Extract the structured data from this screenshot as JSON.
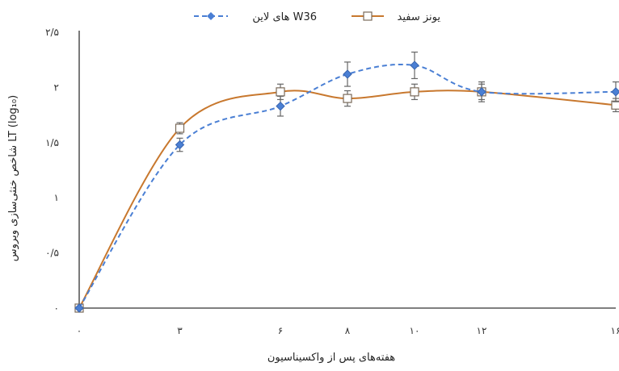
{
  "chart_data": {
    "type": "line",
    "xlabel": "هفته‌های پس از واکسیناسیون",
    "ylabel": "شاخص خنثی‌سازی ویروس LT (log₁₀)",
    "x": [
      0,
      3,
      6,
      8,
      10,
      12,
      16
    ],
    "x_tick_labels": [
      "۰",
      "۳",
      "۶",
      "۸",
      "۱۰",
      "۱۲",
      "۱۶"
    ],
    "ylim": [
      0,
      2.5
    ],
    "y_ticks": [
      0,
      0.5,
      1,
      1.5,
      2,
      2.5
    ],
    "y_tick_labels": [
      "۰",
      "۰/۵",
      "۱",
      "۱/۵",
      "۲",
      "۲/۵"
    ],
    "grid": false,
    "legend_position": "top",
    "series": [
      {
        "name": "های لاین W36",
        "color": "#4a7fd4",
        "style": "dashed",
        "marker": "diamond",
        "values": [
          0,
          1.48,
          1.83,
          2.12,
          2.2,
          1.96,
          1.96
        ],
        "errors": [
          0,
          0.06,
          0.09,
          0.11,
          0.12,
          0.09,
          0.09
        ]
      },
      {
        "name": "یونز سفید",
        "color": "#c8782e",
        "style": "smooth",
        "marker": "square",
        "values": [
          0,
          1.63,
          1.96,
          1.9,
          1.96,
          1.96,
          1.84
        ],
        "errors": [
          0,
          0.05,
          0.07,
          0.07,
          0.07,
          0.07,
          0.06
        ]
      }
    ]
  }
}
